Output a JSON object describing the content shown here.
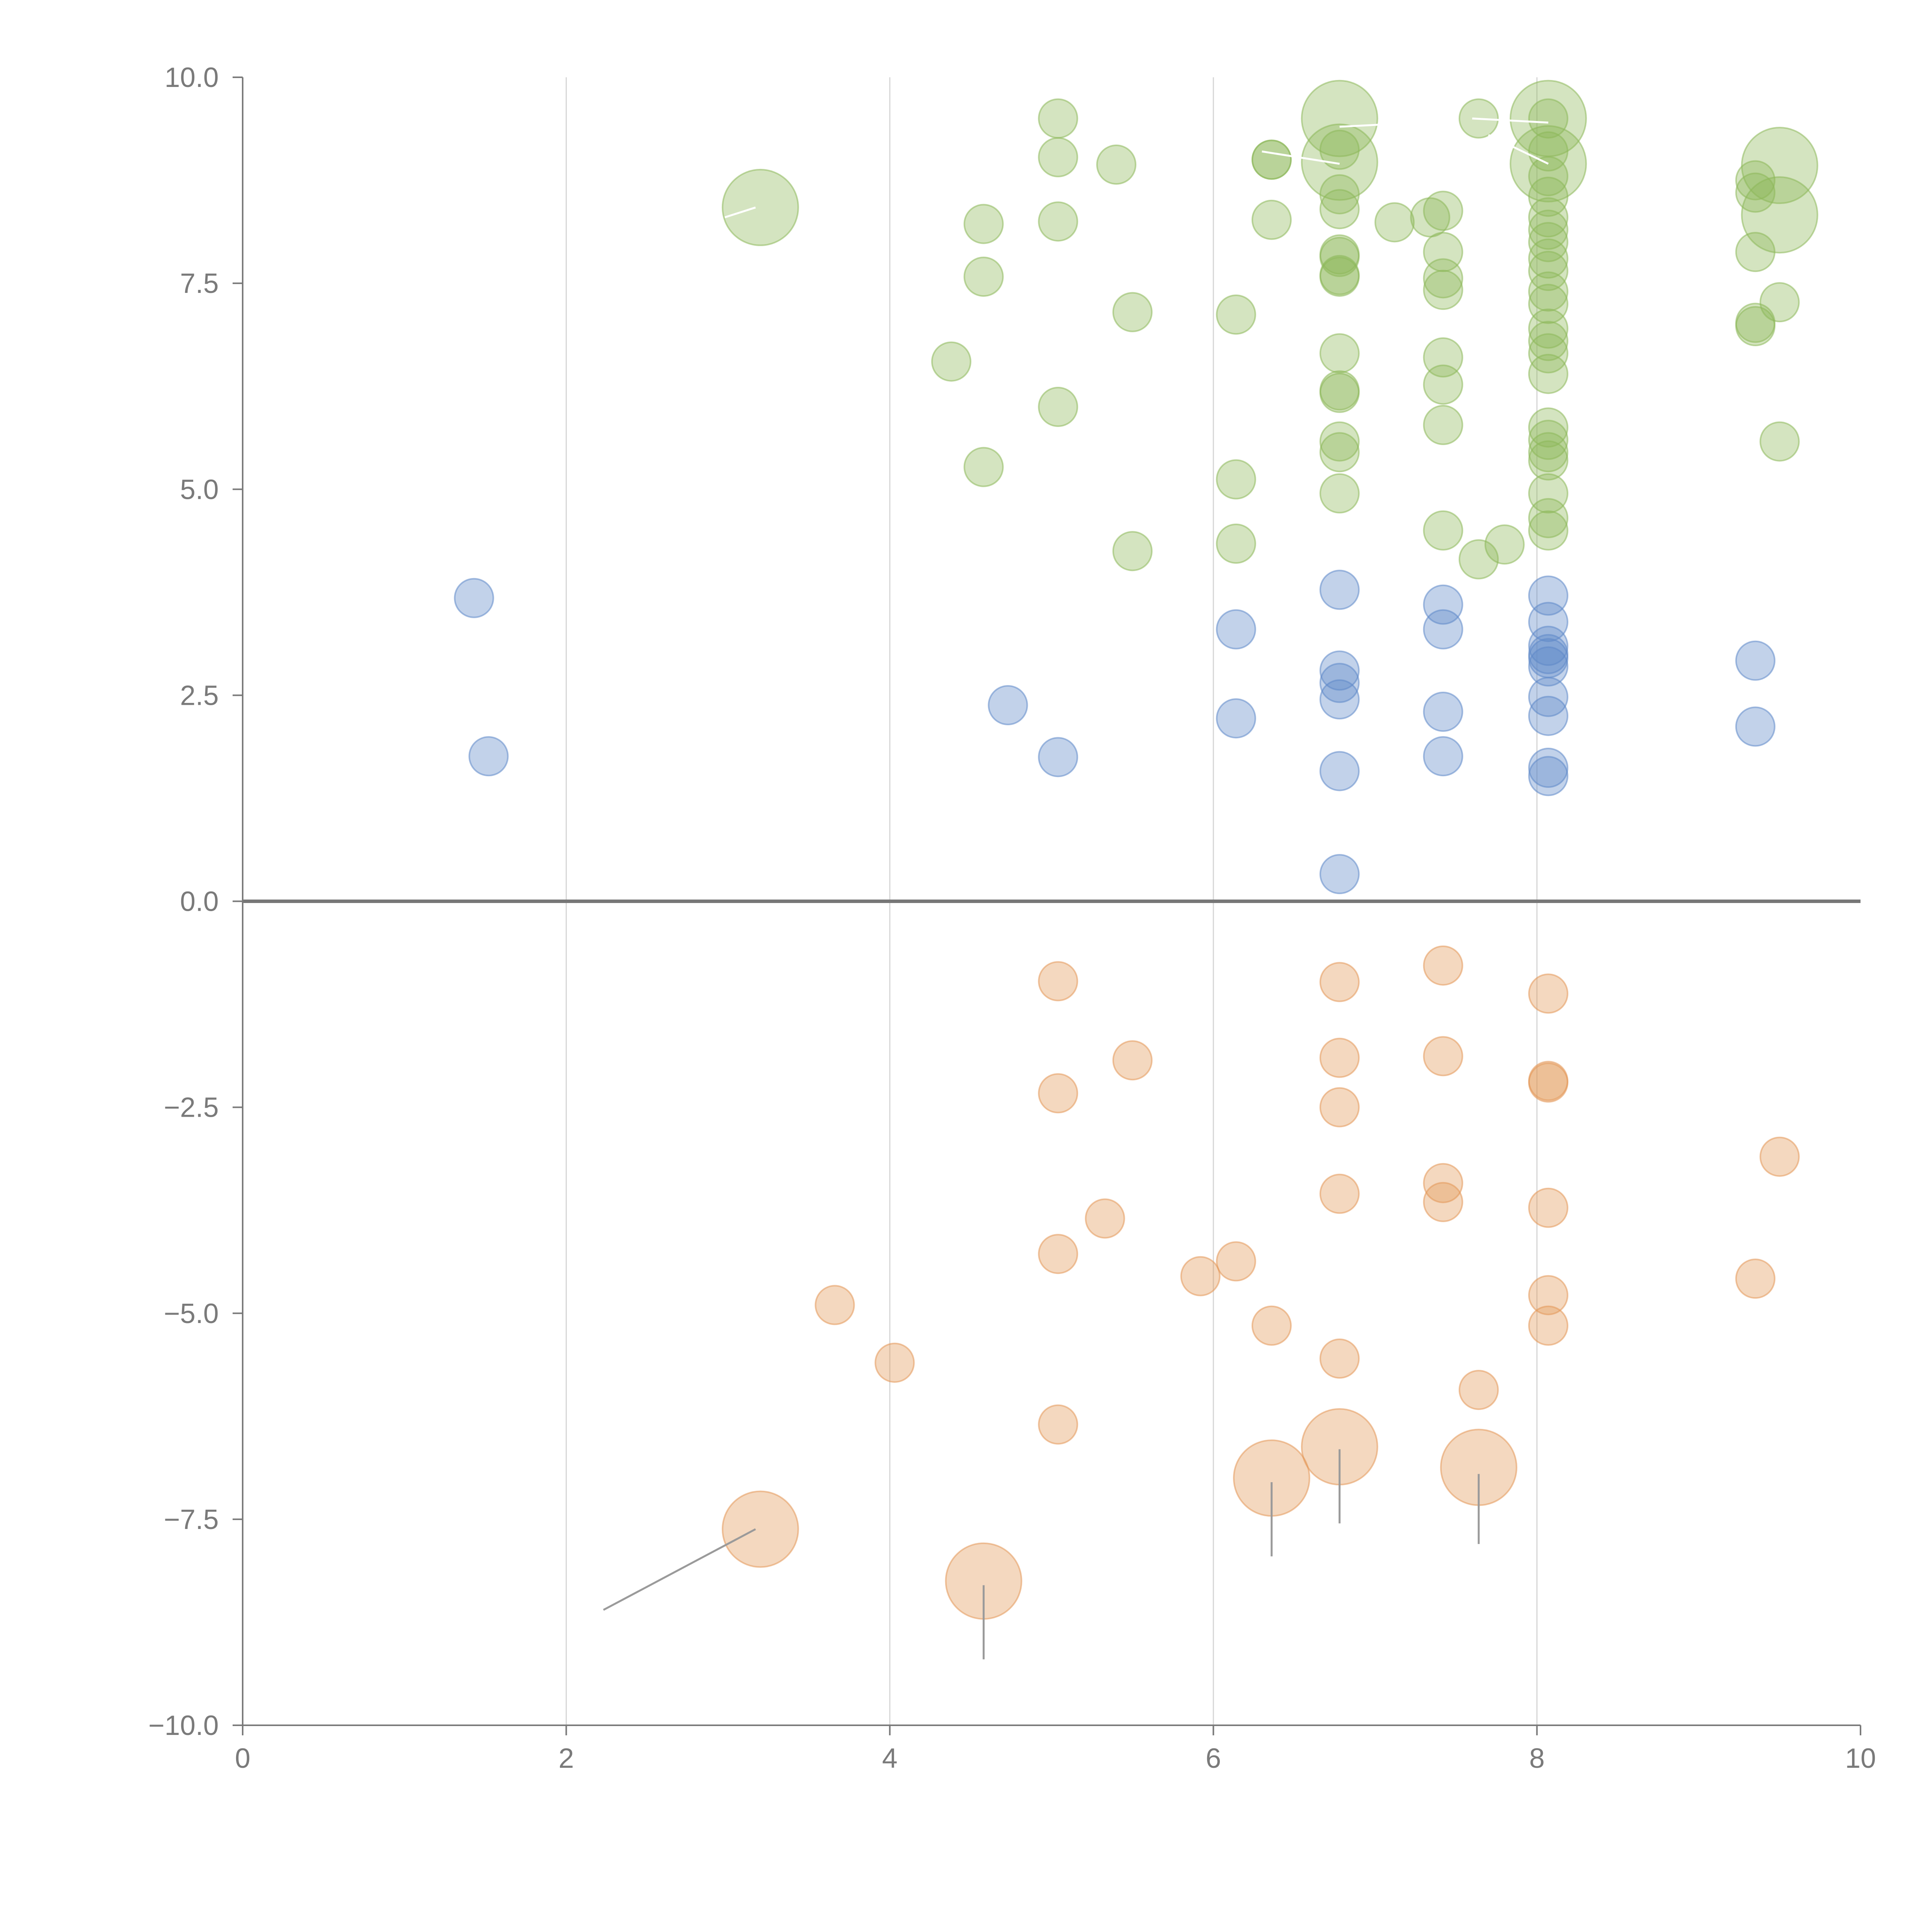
{
  "chart_data": {
    "type": "scatter",
    "title": "",
    "xlabel": "",
    "ylabel": "",
    "xlim": [
      0,
      10
    ],
    "ylim": [
      -10,
      10
    ],
    "grid": "vertical",
    "x_ticks": [
      "0",
      "2",
      "4",
      "6",
      "8",
      "10"
    ],
    "y_ticks": [
      "10.0",
      "7.5",
      "5.0",
      "2.5",
      "0.0",
      "−2.5",
      "−5.0",
      "−7.5",
      "−10.0"
    ],
    "x_tick_values": [
      0,
      2,
      4,
      6,
      8,
      10
    ],
    "y_tick_values": [
      10,
      7.5,
      5,
      2.5,
      0,
      -2.5,
      -5,
      -7.5,
      -10
    ],
    "zero_line": 0,
    "colors": {
      "green": "#8db85a",
      "blue": "#5f88c9",
      "orange": "#e39858",
      "axis": "#7a7a7a",
      "grid": "#d6d6d6",
      "leader_dark": "#9a9a9a",
      "leader_light": "#ffffff"
    },
    "series": [
      {
        "name": "green",
        "color": "#8db85a",
        "points": [
          [
            3.2,
            8.42,
            3
          ],
          [
            4.38,
            6.55,
            1
          ],
          [
            4.58,
            8.22,
            1
          ],
          [
            4.58,
            7.58,
            1
          ],
          [
            4.58,
            5.27,
            1
          ],
          [
            5.04,
            9.5,
            1
          ],
          [
            5.04,
            9.03,
            1
          ],
          [
            5.04,
            8.25,
            1
          ],
          [
            5.04,
            6.0,
            1
          ],
          [
            5.4,
            8.94,
            1
          ],
          [
            5.5,
            7.15,
            1
          ],
          [
            5.5,
            4.25,
            1
          ],
          [
            6.14,
            7.12,
            1
          ],
          [
            6.14,
            5.12,
            1
          ],
          [
            6.14,
            4.34,
            1
          ],
          [
            6.36,
            9.0,
            1
          ],
          [
            6.36,
            9.0,
            1
          ],
          [
            6.36,
            8.27,
            1
          ],
          [
            6.78,
            9.5,
            3
          ],
          [
            6.78,
            8.97,
            3
          ],
          [
            6.78,
            9.12,
            1
          ],
          [
            6.78,
            8.58,
            1
          ],
          [
            6.78,
            8.4,
            1
          ],
          [
            6.78,
            7.85,
            1
          ],
          [
            6.78,
            7.82,
            1
          ],
          [
            6.78,
            7.6,
            1
          ],
          [
            6.78,
            7.58,
            1
          ],
          [
            6.78,
            6.65,
            1
          ],
          [
            6.78,
            6.2,
            1
          ],
          [
            6.78,
            6.17,
            1
          ],
          [
            6.78,
            5.58,
            1
          ],
          [
            6.78,
            5.45,
            1
          ],
          [
            6.78,
            4.95,
            1
          ],
          [
            7.12,
            8.24,
            1
          ],
          [
            7.34,
            8.3,
            1
          ],
          [
            7.42,
            8.38,
            1
          ],
          [
            7.42,
            7.88,
            1
          ],
          [
            7.42,
            7.56,
            1
          ],
          [
            7.42,
            7.42,
            1
          ],
          [
            7.42,
            6.6,
            1
          ],
          [
            7.42,
            6.27,
            1
          ],
          [
            7.42,
            5.78,
            1
          ],
          [
            7.42,
            4.5,
            1
          ],
          [
            7.64,
            9.5,
            1
          ],
          [
            7.64,
            4.15,
            1
          ],
          [
            7.8,
            4.33,
            1
          ],
          [
            8.07,
            9.5,
            3
          ],
          [
            8.07,
            8.95,
            3
          ],
          [
            8.07,
            9.5,
            1
          ],
          [
            8.07,
            9.1,
            1
          ],
          [
            8.07,
            8.8,
            1
          ],
          [
            8.07,
            8.55,
            1
          ],
          [
            8.07,
            8.3,
            1
          ],
          [
            8.07,
            8.15,
            1
          ],
          [
            8.07,
            8.0,
            1
          ],
          [
            8.07,
            7.8,
            1
          ],
          [
            8.07,
            7.65,
            1
          ],
          [
            8.07,
            7.4,
            1
          ],
          [
            8.07,
            7.25,
            1
          ],
          [
            8.07,
            6.95,
            1
          ],
          [
            8.07,
            6.8,
            1
          ],
          [
            8.07,
            6.65,
            1
          ],
          [
            8.07,
            6.4,
            1
          ],
          [
            8.07,
            5.75,
            1
          ],
          [
            8.07,
            5.6,
            1
          ],
          [
            8.07,
            5.45,
            1
          ],
          [
            8.07,
            5.35,
            1
          ],
          [
            8.07,
            4.95,
            1
          ],
          [
            8.07,
            4.65,
            1
          ],
          [
            8.07,
            4.5,
            1
          ],
          [
            9.35,
            8.75,
            1
          ],
          [
            9.35,
            8.6,
            1
          ],
          [
            9.35,
            7.88,
            1
          ],
          [
            9.35,
            7.02,
            1
          ],
          [
            9.35,
            6.98,
            1
          ],
          [
            9.5,
            8.93,
            3
          ],
          [
            9.5,
            8.33,
            3
          ],
          [
            9.5,
            7.27,
            1
          ],
          [
            9.5,
            5.58,
            1
          ]
        ]
      },
      {
        "name": "blue",
        "color": "#5f88c9",
        "points": [
          [
            1.43,
            3.68,
            1
          ],
          [
            1.52,
            1.76,
            1
          ],
          [
            4.73,
            2.38,
            1
          ],
          [
            5.04,
            1.75,
            1
          ],
          [
            6.14,
            3.3,
            1
          ],
          [
            6.14,
            2.22,
            1
          ],
          [
            6.78,
            3.78,
            1
          ],
          [
            6.78,
            2.8,
            1
          ],
          [
            6.78,
            2.65,
            1
          ],
          [
            6.78,
            2.45,
            1
          ],
          [
            6.78,
            1.58,
            1
          ],
          [
            6.78,
            0.33,
            1
          ],
          [
            7.42,
            3.6,
            1
          ],
          [
            7.42,
            3.3,
            1
          ],
          [
            7.42,
            2.3,
            1
          ],
          [
            7.42,
            1.76,
            1
          ],
          [
            8.07,
            3.71,
            1
          ],
          [
            8.07,
            3.39,
            1
          ],
          [
            8.07,
            3.1,
            1
          ],
          [
            8.07,
            3.0,
            1
          ],
          [
            8.07,
            2.95,
            1
          ],
          [
            8.07,
            2.85,
            1
          ],
          [
            8.07,
            2.48,
            1
          ],
          [
            8.07,
            2.25,
            1
          ],
          [
            8.07,
            1.62,
            1
          ],
          [
            8.07,
            1.52,
            1
          ],
          [
            9.35,
            2.92,
            1
          ],
          [
            9.35,
            2.12,
            1
          ]
        ]
      },
      {
        "name": "orange",
        "color": "#e39858",
        "points": [
          [
            3.2,
            -7.62,
            3
          ],
          [
            3.66,
            -4.9,
            1
          ],
          [
            4.03,
            -5.6,
            1
          ],
          [
            4.58,
            -8.25,
            3
          ],
          [
            5.04,
            -0.97,
            1
          ],
          [
            5.04,
            -2.33,
            1
          ],
          [
            5.04,
            -4.28,
            1
          ],
          [
            5.04,
            -6.35,
            1
          ],
          [
            5.33,
            -3.85,
            1
          ],
          [
            5.5,
            -1.93,
            1
          ],
          [
            5.92,
            -4.55,
            1
          ],
          [
            6.14,
            -4.37,
            1
          ],
          [
            6.36,
            -5.15,
            1
          ],
          [
            6.36,
            -7.0,
            3
          ],
          [
            6.78,
            -0.98,
            1
          ],
          [
            6.78,
            -1.9,
            1
          ],
          [
            6.78,
            -2.5,
            1
          ],
          [
            6.78,
            -3.55,
            1
          ],
          [
            6.78,
            -5.55,
            1
          ],
          [
            6.78,
            -6.62,
            3
          ],
          [
            7.42,
            -0.78,
            1
          ],
          [
            7.42,
            -1.88,
            1
          ],
          [
            7.42,
            -3.42,
            1
          ],
          [
            7.42,
            -3.65,
            1
          ],
          [
            7.64,
            -5.93,
            1
          ],
          [
            7.64,
            -6.87,
            3
          ],
          [
            8.07,
            -1.12,
            1
          ],
          [
            8.07,
            -2.18,
            1
          ],
          [
            8.07,
            -2.2,
            1
          ],
          [
            8.07,
            -3.72,
            1
          ],
          [
            8.07,
            -4.78,
            1
          ],
          [
            8.07,
            -5.15,
            1
          ],
          [
            9.35,
            -4.58,
            1
          ],
          [
            9.5,
            -3.1,
            1
          ]
        ]
      }
    ],
    "leader_lines": [
      {
        "color": "dark",
        "from": [
          3.17,
          -7.62
        ],
        "to": [
          2.23,
          -8.6
        ]
      },
      {
        "color": "dark",
        "from": [
          4.58,
          -8.3
        ],
        "to": [
          4.58,
          -9.2
        ]
      },
      {
        "color": "dark",
        "from": [
          6.36,
          -7.05
        ],
        "to": [
          6.36,
          -7.95
        ]
      },
      {
        "color": "dark",
        "from": [
          6.78,
          -6.65
        ],
        "to": [
          6.78,
          -7.55
        ]
      },
      {
        "color": "dark",
        "from": [
          7.64,
          -6.95
        ],
        "to": [
          7.64,
          -7.8
        ]
      },
      {
        "color": "light",
        "from": [
          3.17,
          8.42
        ],
        "to": [
          2.98,
          8.3
        ]
      },
      {
        "color": "light",
        "from": [
          6.78,
          9.4
        ],
        "to": [
          7.28,
          9.45
        ]
      },
      {
        "color": "light",
        "from": [
          6.78,
          8.95
        ],
        "to": [
          6.3,
          9.1
        ]
      },
      {
        "color": "light",
        "from": [
          8.07,
          9.45
        ],
        "to": [
          7.6,
          9.5
        ]
      },
      {
        "color": "light",
        "from": [
          8.07,
          8.95
        ],
        "to": [
          7.7,
          9.3
        ]
      }
    ]
  }
}
